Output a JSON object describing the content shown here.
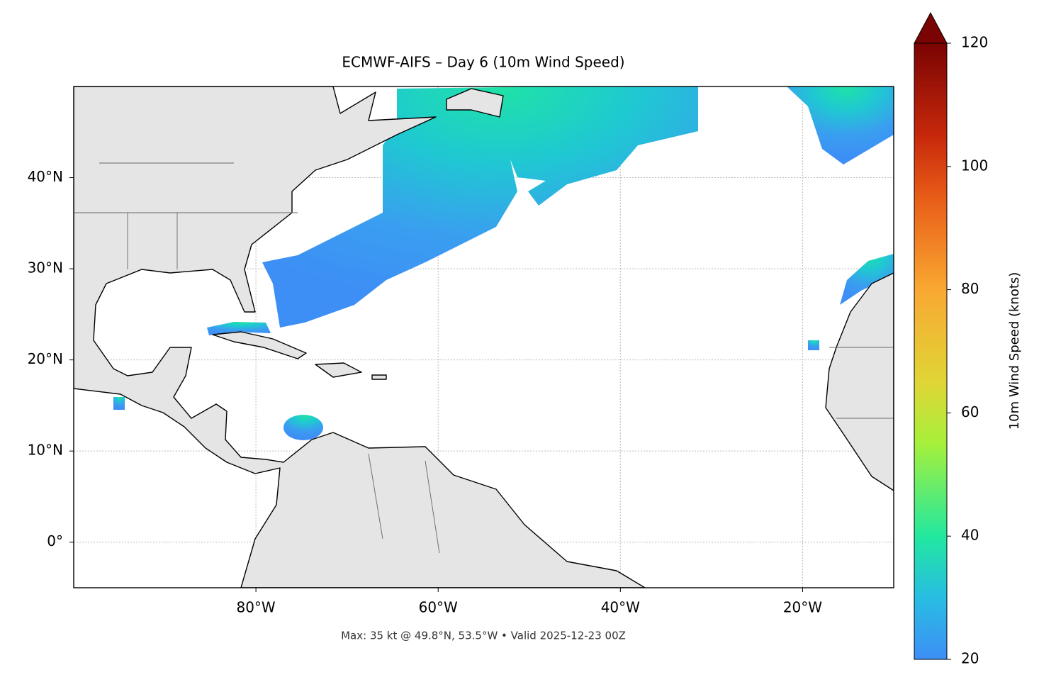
{
  "chart_data": {
    "type": "map",
    "title": "ECMWF-AIFS – Day 6 (10m Wind Speed)",
    "footer": "Max: 35 kt @ 49.8°N, 53.5°W • Valid 2025-12-23 00Z",
    "xlim": [
      -100,
      -10
    ],
    "ylim": [
      -5,
      50
    ],
    "xticks": [
      {
        "value": -80,
        "label": "80°W"
      },
      {
        "value": -60,
        "label": "60°W"
      },
      {
        "value": -40,
        "label": "40°W"
      },
      {
        "value": -20,
        "label": "20°W"
      }
    ],
    "yticks": [
      {
        "value": 0,
        "label": "0°"
      },
      {
        "value": 10,
        "label": "10°N"
      },
      {
        "value": 20,
        "label": "20°N"
      },
      {
        "value": 30,
        "label": "30°N"
      },
      {
        "value": 40,
        "label": "40°N"
      }
    ],
    "grid": true,
    "colorbar": {
      "label": "10m Wind Speed (knots)",
      "lim": [
        20,
        120
      ],
      "ticks": [
        20,
        40,
        60,
        80,
        100,
        120
      ]
    }
  }
}
